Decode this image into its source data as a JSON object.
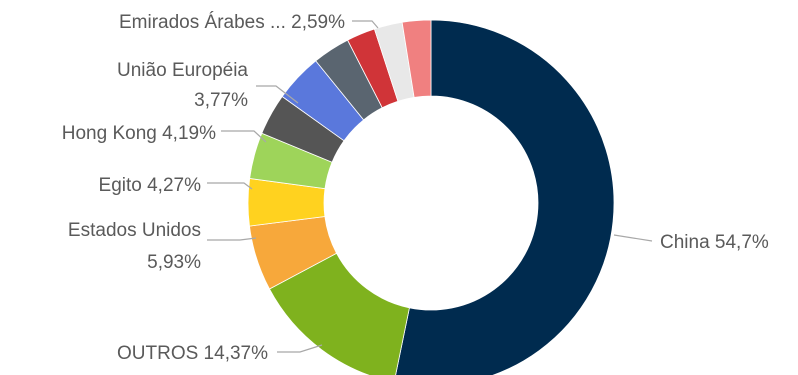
{
  "chart_data": {
    "type": "pie",
    "style": "donut",
    "slices": [
      {
        "label": "China",
        "value": 54.7,
        "display": "China 54,7%",
        "color": "#002b4f"
      },
      {
        "label": "OUTROS",
        "value": 14.37,
        "display": "OUTROS 14,37%",
        "color": "#7fb21e"
      },
      {
        "label": "Estados Unidos",
        "value": 5.93,
        "display": "Estados Unidos 5,93%",
        "color": "#f7a83b"
      },
      {
        "label": "Egito",
        "value": 4.27,
        "display": "Egito 4,27%",
        "color": "#ffd21f"
      },
      {
        "label": "Hong Kong",
        "value": 4.19,
        "display": "Hong Kong 4,19%",
        "color": "#9ed45a"
      },
      {
        "label": "União Européia",
        "value": 3.77,
        "display": "União Européia 3,77%",
        "color": "#555555"
      },
      {
        "label": "",
        "value": 4.39,
        "display": "",
        "color": "#5a78dc"
      },
      {
        "label": "",
        "value": 3.4,
        "display": "",
        "color": "#5a6570"
      },
      {
        "label": "",
        "value": 2.6,
        "display": "",
        "color": "#d03438"
      },
      {
        "label": "",
        "value": 2.55,
        "display": "",
        "color": "#e8e8e8"
      },
      {
        "label": "Emirados Árabes ...",
        "value": 2.59,
        "display": "Emirados Árabes ... 2,59%",
        "color": "#f08080"
      }
    ],
    "labels": {
      "emirados": "Emirados Árabes ... 2,59%",
      "uniao_line1": "União Européia",
      "uniao_line2": "3,77%",
      "hongkong": "Hong Kong 4,19%",
      "egito": "Egito 4,27%",
      "eua_line1": "Estados Unidos",
      "eua_line2": "5,93%",
      "outros": "OUTROS 14,37%",
      "china": "China 54,7%"
    }
  }
}
